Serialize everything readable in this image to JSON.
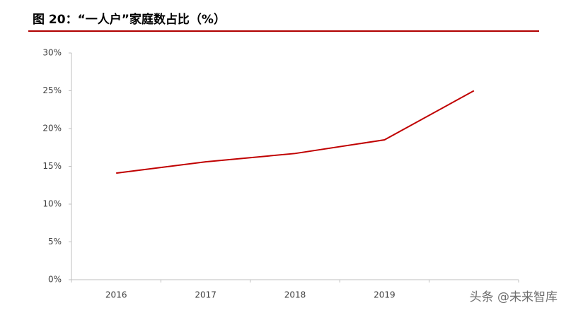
{
  "chart_data": {
    "type": "line",
    "title": "图 20：“一人户”家庭数占比（%）",
    "categories": [
      "2016",
      "2017",
      "2018",
      "2019",
      null
    ],
    "series": [
      {
        "name": "“一人户”家庭数占比",
        "color": "#c00000",
        "values": [
          14.1,
          15.6,
          16.7,
          18.5,
          25
        ]
      }
    ],
    "ylim": [
      0,
      30
    ],
    "yticks": [
      {
        "value": 0,
        "label": "0%"
      },
      {
        "value": 5,
        "label": "5%"
      },
      {
        "value": 10,
        "label": "10%"
      },
      {
        "value": 15,
        "label": "15%"
      },
      {
        "value": 20,
        "label": "20%"
      },
      {
        "value": 25,
        "label": "25%"
      },
      {
        "value": 30,
        "label": "30%"
      }
    ],
    "grid": false,
    "watermark": "头条 @未来智库"
  }
}
